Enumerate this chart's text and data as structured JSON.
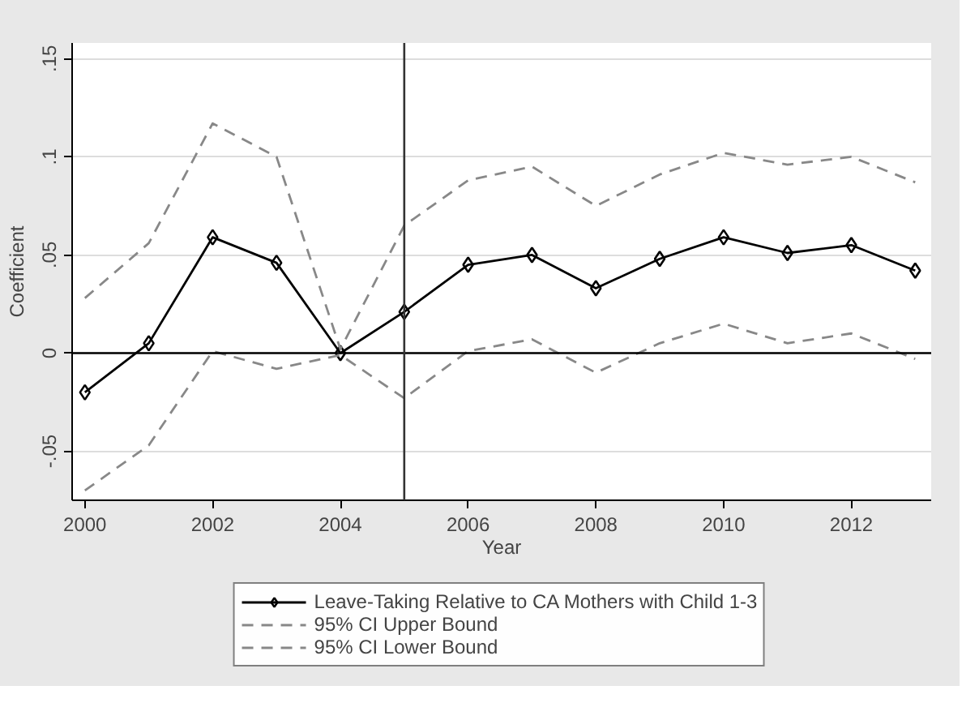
{
  "chart_data": {
    "type": "line",
    "xlabel": "Year",
    "ylabel": "Coefficient",
    "x": [
      2000,
      2001,
      2002,
      2003,
      2004,
      2005,
      2006,
      2007,
      2008,
      2009,
      2010,
      2011,
      2012,
      2013
    ],
    "series": [
      {
        "name": "Leave-Taking Relative to CA Mothers with Child 1-3",
        "color": "#000000",
        "marker": "diamond",
        "line_style": "solid",
        "values": [
          -0.02,
          0.005,
          0.059,
          0.046,
          0,
          0.021,
          0.045,
          0.05,
          0.033,
          0.048,
          0.059,
          0.051,
          0.055,
          0.042
        ]
      },
      {
        "name": "95% CI Upper Bound",
        "color": "#888888",
        "marker": "none",
        "line_style": "dashed",
        "values": [
          0.028,
          0.056,
          0.117,
          0.1,
          0.002,
          0.065,
          0.088,
          0.095,
          0.075,
          0.091,
          0.102,
          0.096,
          0.1,
          0.087
        ]
      },
      {
        "name": "95% CI Lower Bound",
        "color": "#888888",
        "marker": "none",
        "line_style": "dashed",
        "values": [
          -0.07,
          -0.047,
          0.001,
          -0.008,
          -0.001,
          -0.023,
          0.001,
          0.007,
          -0.01,
          0.005,
          0.015,
          0.005,
          0.01,
          -0.003
        ]
      }
    ],
    "xlim": [
      1999.8,
      2013.25
    ],
    "ylim": [
      -0.075,
      0.158
    ],
    "xticks": [
      2000,
      2002,
      2004,
      2006,
      2008,
      2010,
      2012
    ],
    "yticks": [
      {
        "value": -0.05,
        "label": "-.05"
      },
      {
        "value": 0,
        "label": "0"
      },
      {
        "value": 0.05,
        "label": ".05"
      },
      {
        "value": 0.1,
        "label": ".1"
      },
      {
        "value": 0.15,
        "label": ".15"
      }
    ],
    "ref_lines": [
      {
        "axis": "y",
        "value": 0,
        "color": "#000000"
      },
      {
        "axis": "x",
        "value": 2005,
        "color": "#333333"
      }
    ],
    "grid": "y",
    "legend": "bottom"
  }
}
